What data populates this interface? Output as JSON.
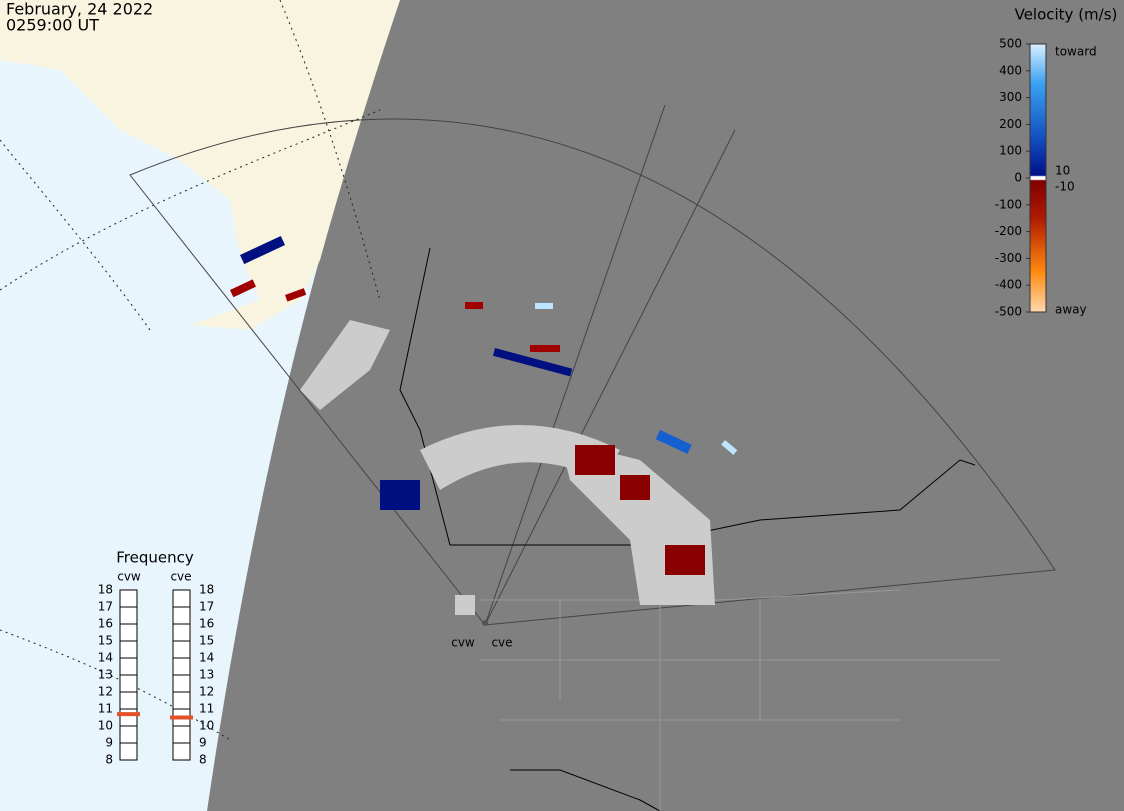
{
  "header": {
    "date": "February, 24 2022",
    "time": "0259:00 UT"
  },
  "colorbar": {
    "title": "Velocity (m/s)",
    "ticks": [
      500,
      400,
      300,
      200,
      100,
      0,
      -100,
      -200,
      -300,
      -400,
      -500
    ],
    "toward": "toward",
    "away": "away",
    "gap_ticks": [
      10,
      -10
    ]
  },
  "frequency": {
    "title": "Frequency",
    "radars": [
      "cvw",
      "cve"
    ],
    "ticks": [
      18,
      17,
      16,
      15,
      14,
      13,
      12,
      11,
      10,
      9,
      8
    ],
    "ylim": [
      8,
      18
    ],
    "values": [
      10.7,
      10.5
    ],
    "color": "#e4502a"
  },
  "map": {
    "radar_labels": [
      "cvw",
      "cve"
    ]
  }
}
